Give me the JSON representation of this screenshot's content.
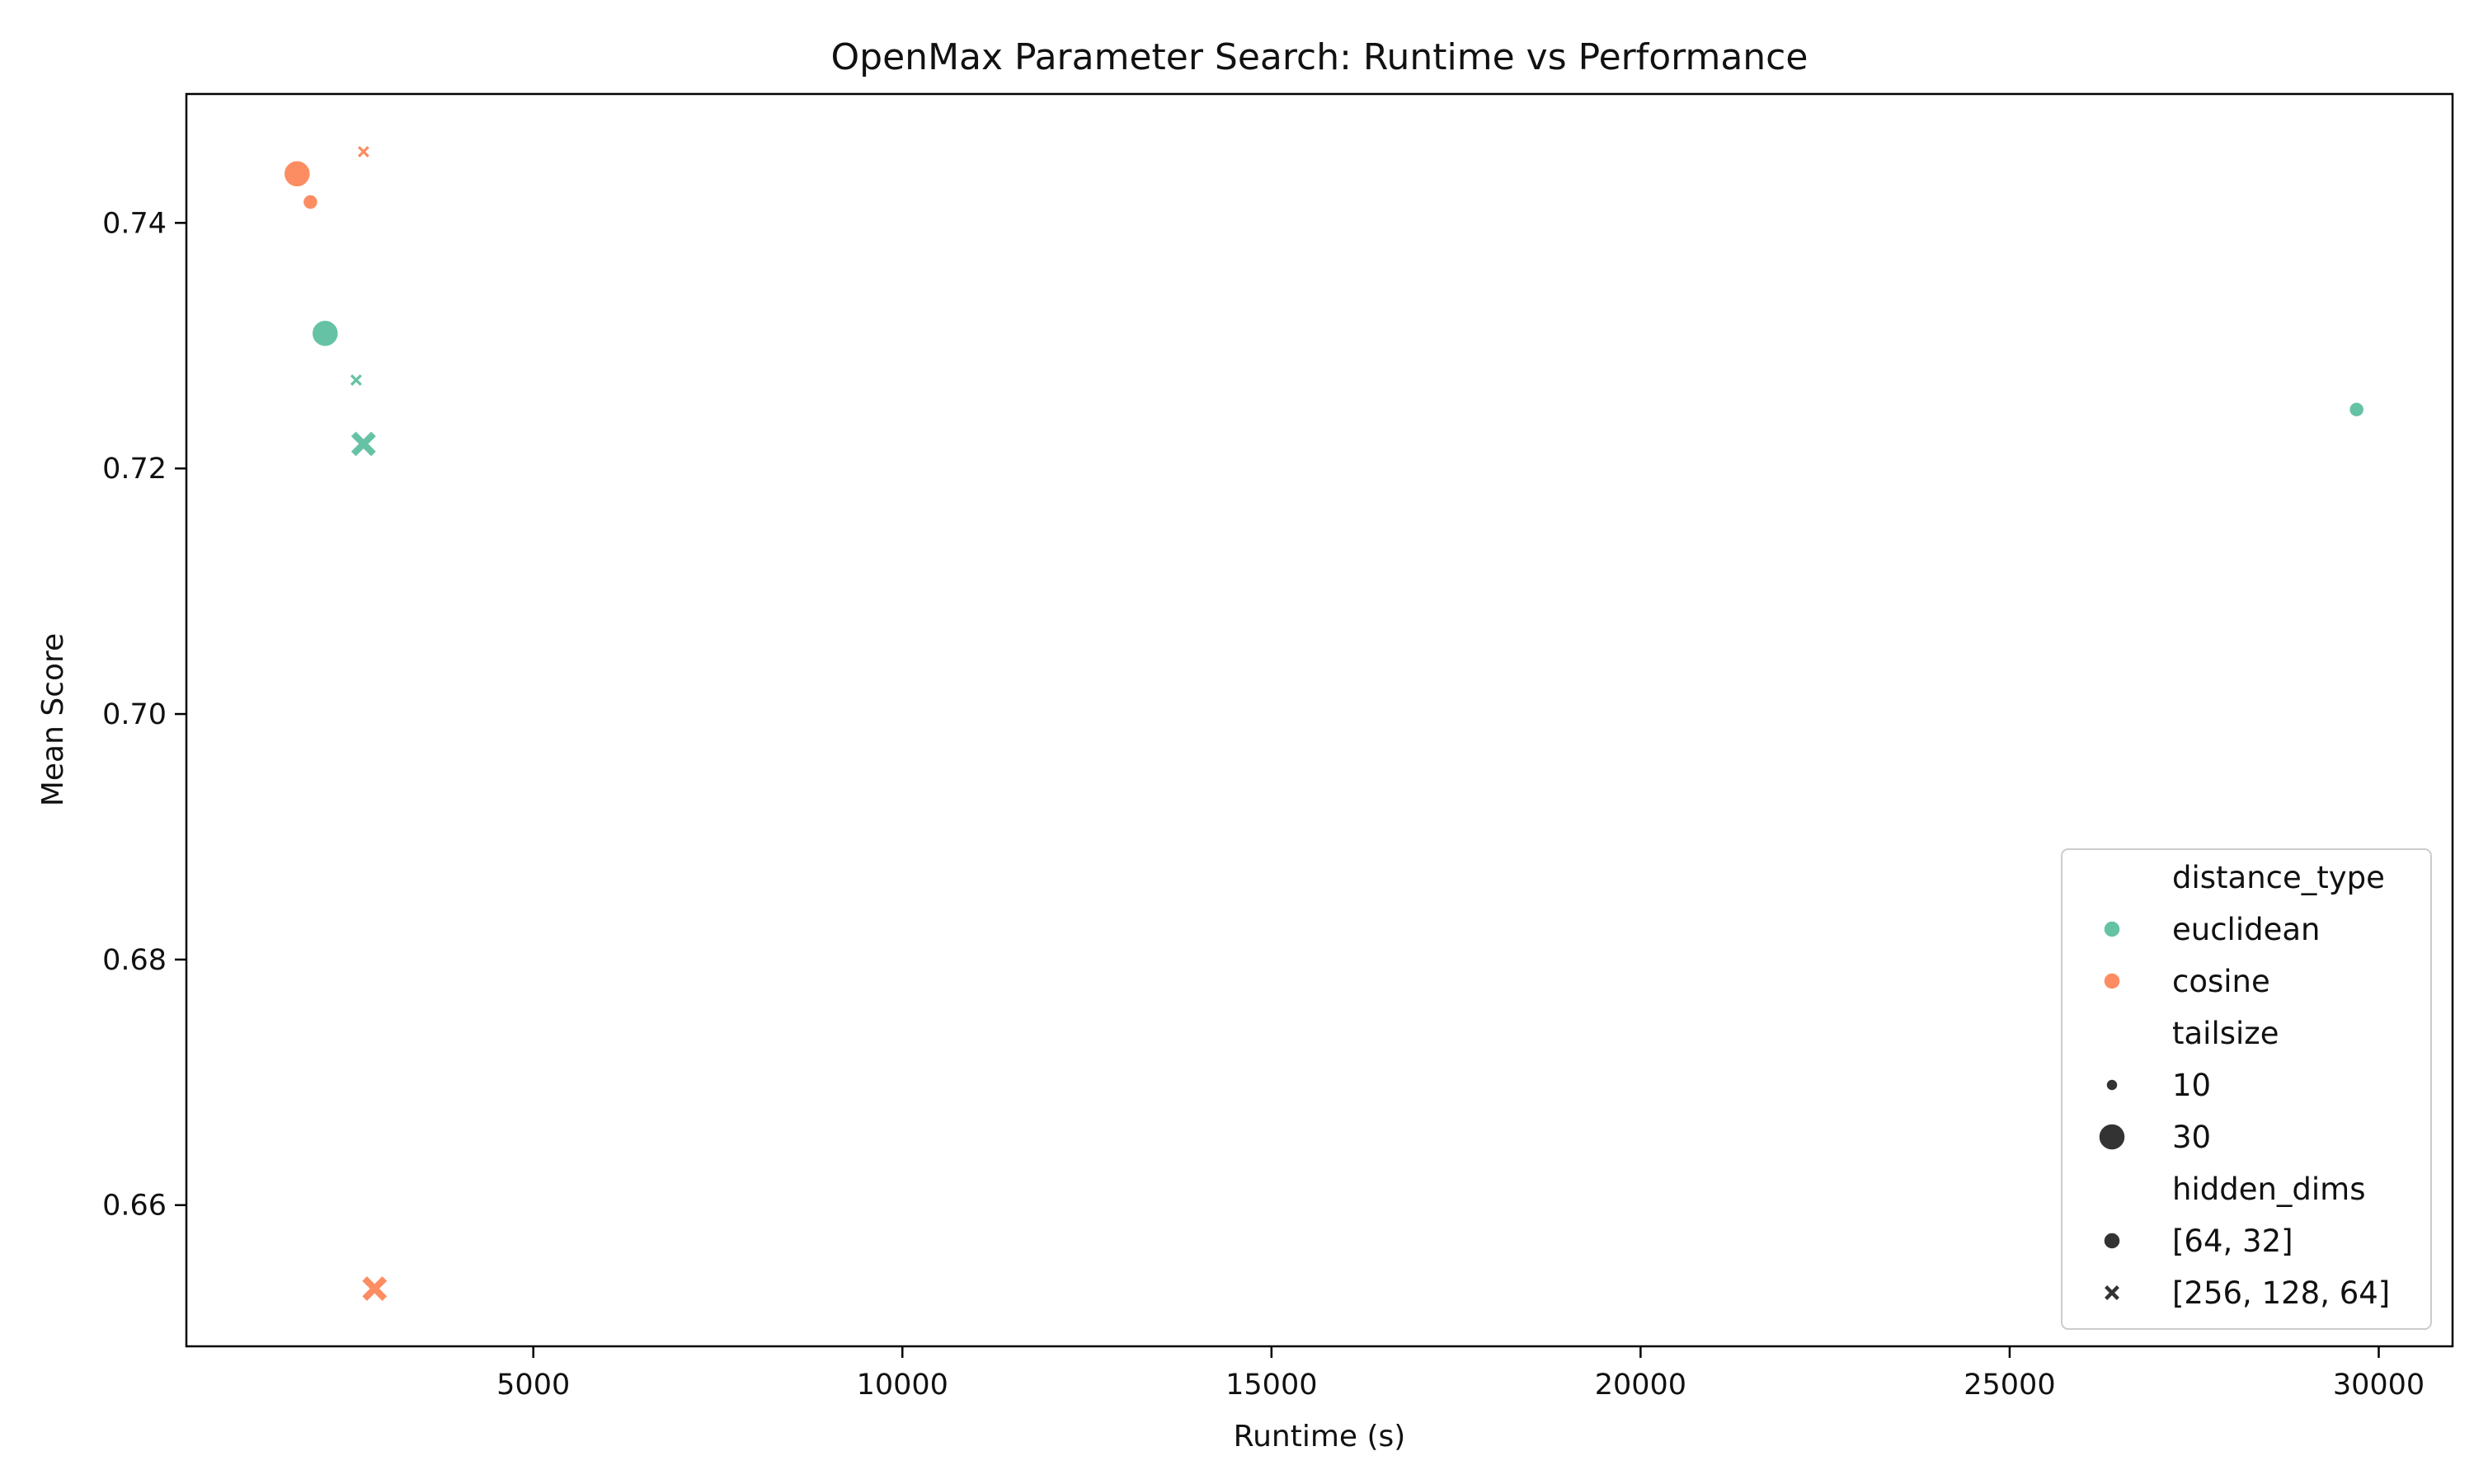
{
  "chart_data": {
    "type": "scatter",
    "title": "OpenMax Parameter Search: Runtime vs Performance",
    "xlabel": "Runtime (s)",
    "ylabel": "Mean Score",
    "xlim": [
      300,
      31000
    ],
    "ylim": [
      0.6485,
      0.7505
    ],
    "xticks": [
      5000,
      10000,
      15000,
      20000,
      25000,
      30000
    ],
    "yticks": [
      0.66,
      0.68,
      0.7,
      0.72,
      0.74
    ],
    "xtick_labels": [
      "5000",
      "10000",
      "15000",
      "20000",
      "25000",
      "30000"
    ],
    "ytick_labels": [
      "0.66",
      "0.68",
      "0.70",
      "0.72",
      "0.74"
    ],
    "grid": false,
    "legend_position": "lower-right",
    "colors": {
      "euclidean": "#66c2a5",
      "cosine": "#fc8d62",
      "neutral": "#333333"
    },
    "points": [
      {
        "x": 1800,
        "y": 0.744,
        "distance_type": "cosine",
        "tailsize": 30,
        "hidden_dims": "[64, 32]"
      },
      {
        "x": 1980,
        "y": 0.7417,
        "distance_type": "cosine",
        "tailsize": 10,
        "hidden_dims": "[64, 32]"
      },
      {
        "x": 2700,
        "y": 0.7458,
        "distance_type": "cosine",
        "tailsize": 10,
        "hidden_dims": "[256, 128, 64]"
      },
      {
        "x": 2850,
        "y": 0.6532,
        "distance_type": "cosine",
        "tailsize": 30,
        "hidden_dims": "[256, 128, 64]"
      },
      {
        "x": 2180,
        "y": 0.731,
        "distance_type": "euclidean",
        "tailsize": 30,
        "hidden_dims": "[64, 32]"
      },
      {
        "x": 2600,
        "y": 0.7272,
        "distance_type": "euclidean",
        "tailsize": 10,
        "hidden_dims": "[256, 128, 64]"
      },
      {
        "x": 2700,
        "y": 0.722,
        "distance_type": "euclidean",
        "tailsize": 30,
        "hidden_dims": "[256, 128, 64]"
      },
      {
        "x": 29700,
        "y": 0.7248,
        "distance_type": "euclidean",
        "tailsize": 10,
        "hidden_dims": "[64, 32]"
      }
    ],
    "legend": {
      "hue_title": "distance_type",
      "hue_items": [
        {
          "label": "euclidean",
          "key": "euclidean"
        },
        {
          "label": "cosine",
          "key": "cosine"
        }
      ],
      "size_title": "tailsize",
      "size_items": [
        {
          "label": "10",
          "tailsize": 10
        },
        {
          "label": "30",
          "tailsize": 30
        }
      ],
      "style_title": "hidden_dims",
      "style_items": [
        {
          "label": "[64, 32]",
          "marker": "circle"
        },
        {
          "label": "[256, 128, 64]",
          "marker": "x"
        }
      ]
    }
  }
}
